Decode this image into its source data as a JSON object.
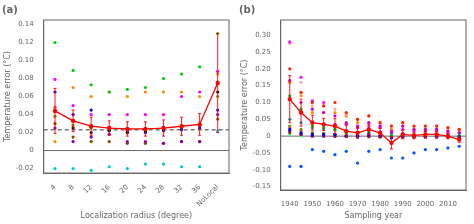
{
  "chart_data": [
    {
      "type": "scatter",
      "title": "(a)",
      "x_label": "Localization radius (degree)",
      "y_label": "Temperature error (°C)",
      "x": [
        4,
        8,
        12,
        16,
        20,
        24,
        28,
        32,
        36,
        40
      ],
      "xlim": [
        1.5,
        42.5
      ],
      "xticks": [
        4,
        8,
        12,
        16,
        20,
        24,
        28,
        32,
        36,
        {
          "value": 40,
          "label": "NoLocal"
        }
      ],
      "ylim": [
        -0.025,
        0.145
      ],
      "yticks": [
        -0.02,
        0,
        0.02,
        0.04,
        0.06,
        0.08,
        {
          "value": 0.1,
          "label": "0.10"
        },
        0.12,
        0.14
      ],
      "grid": false,
      "hlines": [
        {
          "y": 0.023,
          "color": "#000000",
          "line_style": "dashed"
        },
        {
          "y": 0,
          "color": "#444444",
          "line_style": "solid"
        }
      ],
      "series": [
        {
          "type": "scatter",
          "marker": "circle",
          "color": "#00cc00",
          "values": [
            0.12,
            0.089,
            0.073,
            0.065,
            0.068,
            0.07,
            0.08,
            0.085,
            0.093,
            0.13
          ]
        },
        {
          "type": "scatter",
          "marker": "circle",
          "color": "#ff00ff",
          "values": [
            0.079,
            0.05,
            0.04,
            0.04,
            0.04,
            0.04,
            0.04,
            0.06,
            0.065,
            0.088
          ]
        },
        {
          "type": "scatter",
          "marker": "circle",
          "color": "#ff4444",
          "values": [
            0.048,
            0.033,
            0.027,
            0.025,
            0.024,
            0.024,
            0.025,
            0.027,
            0.029,
            0.075
          ]
        },
        {
          "type": "scatter",
          "marker": "circle",
          "color": "#000000",
          "values": [
            0.044,
            0.025,
            0.02,
            0.022,
            0.02,
            0.022,
            0.025,
            0.026,
            0.028,
            0.065
          ]
        },
        {
          "type": "scatter",
          "marker": "circle",
          "color": "#8800aa",
          "values": [
            0.025,
            0.01,
            0.015,
            0.018,
            0.01,
            0.01,
            0.008,
            0.01,
            0.01,
            0.04
          ]
        },
        {
          "type": "scatter",
          "marker": "circle",
          "color": "#ff8800",
          "values": [
            0.01,
            0.07,
            0.06,
            0.065,
            0.06,
            0.065,
            0.065,
            0.065,
            0.06,
            0.085
          ]
        },
        {
          "type": "scatter",
          "marker": "circle",
          "color": "#00cccc",
          "values": [
            -0.02,
            -0.02,
            -0.022,
            -0.018,
            -0.02,
            -0.015,
            -0.015,
            -0.018,
            -0.018,
            0.022
          ]
        },
        {
          "type": "scatter",
          "marker": "circle",
          "color": "#0000ff",
          "values": [
            0.065,
            0.04,
            0.045,
            0.025,
            0.022,
            0.02,
            0.022,
            0.023,
            0.025,
            0.045
          ]
        },
        {
          "type": "scatter",
          "marker": "circle",
          "color": "#888800",
          "values": [
            0.038,
            0.028,
            0.025,
            0.022,
            0.02,
            0.022,
            0.025,
            0.025,
            0.028,
            0.06
          ]
        },
        {
          "type": "scatter",
          "marker": "circle",
          "color": "#884400",
          "values": [
            0.03,
            0.015,
            0.01,
            0.01,
            0.008,
            0.008,
            0.008,
            0.01,
            0.01,
            0.035
          ]
        },
        {
          "type": "line",
          "marker": "circle",
          "line_style": "solid",
          "color": "#ff0000",
          "values": [
            0.044,
            0.033,
            0.027,
            0.025,
            0.024,
            0.024,
            0.025,
            0.027,
            0.029,
            0.075
          ],
          "errors": [
            0.025,
            0.012,
            0.01,
            0.008,
            0.008,
            0.008,
            0.009,
            0.01,
            0.012,
            0.055
          ]
        }
      ]
    },
    {
      "type": "scatter",
      "title": "(b)",
      "x_label": "Sampling year",
      "y_label": "Temperature error (°C)",
      "x": [
        1940,
        1945,
        1950,
        1955,
        1960,
        1965,
        1970,
        1975,
        1980,
        1985,
        1990,
        1995,
        2000,
        2005,
        2010,
        2015
      ],
      "xlim": [
        1936,
        2018
      ],
      "xticks": [
        1940,
        1950,
        1960,
        1970,
        1980,
        1990,
        2000,
        2010
      ],
      "ylim": [
        -0.16,
        0.345
      ],
      "yticks": [
        -0.15,
        {
          "value": -0.1,
          "label": "-0.10"
        },
        -0.05,
        0,
        0.05,
        {
          "value": 0.1,
          "label": "0.10"
        },
        0.15,
        {
          "value": 0.2,
          "label": "0.20"
        },
        0.25,
        {
          "value": 0.3,
          "label": "0.30"
        }
      ],
      "grid": false,
      "hlines": [
        {
          "y": 0,
          "color": "#444444",
          "line_style": "solid"
        }
      ],
      "series": [
        {
          "type": "scatter",
          "marker": "circle",
          "color": "#ff2200",
          "values": [
            0.2,
            0.13,
            0.1,
            0.09,
            0.1,
            0.07,
            0.05,
            0.06,
            0.04,
            0.03,
            0.04,
            0.03,
            0.03,
            0.03,
            0.025,
            0.02
          ]
        },
        {
          "type": "scatter",
          "marker": "circle",
          "color": "#cc00cc",
          "values": [
            0.165,
            0.1,
            0.08,
            0.07,
            0.06,
            0.04,
            0.03,
            0.04,
            0.03,
            0.01,
            0.03,
            0.02,
            0.02,
            0.02,
            0.015,
            0.01
          ]
        },
        {
          "type": "scatter",
          "marker": "circle",
          "color": "#000000",
          "values": [
            0.11,
            0.07,
            0.04,
            0.035,
            0.03,
            0.015,
            0.01,
            0.02,
            0.01,
            -0.02,
            0.005,
            0.002,
            0.005,
            0.005,
            0.0,
            -0.01
          ]
        },
        {
          "type": "scatter",
          "marker": "circle",
          "color": "#0000ff",
          "values": [
            0.02,
            0.01,
            0.005,
            0.005,
            0.005,
            0.0,
            0.0,
            0.005,
            0.0,
            -0.005,
            0.0,
            0.0,
            0.0,
            0.0,
            -0.002,
            -0.002
          ]
        },
        {
          "type": "scatter",
          "marker": "circle",
          "color": "#0055ff",
          "values": [
            -0.09,
            -0.09,
            -0.04,
            -0.045,
            -0.055,
            -0.045,
            -0.08,
            -0.045,
            -0.04,
            -0.065,
            -0.065,
            -0.05,
            -0.04,
            -0.04,
            -0.035,
            -0.03
          ]
        },
        {
          "type": "scatter",
          "marker": "circle",
          "color": "#ff00ff",
          "values": [
            0.28,
            0.175,
            0.105,
            0.1,
            0.035,
            0.035,
            0.025,
            0.03,
            0.025,
            0.015,
            0.02,
            0.015,
            0.015,
            0.015,
            0.01,
            0.01
          ]
        },
        {
          "type": "scatter",
          "marker": "circle",
          "color": "#ffaaaa",
          "values": [
            0.275,
            0.16,
            0.09,
            0.09,
            0.08,
            0.065,
            0.05,
            0.06,
            0.04,
            0.03,
            0.04,
            0.03,
            0.03,
            0.03,
            0.025,
            0.02
          ]
        },
        {
          "type": "scatter",
          "marker": "circle",
          "color": "#ff8800",
          "values": [
            0.16,
            0.12,
            0.07,
            0.07,
            0.07,
            0.06,
            0.04,
            0.04,
            0.03,
            0.02,
            0.03,
            0.02,
            0.02,
            0.02,
            0.015,
            0.01
          ]
        },
        {
          "type": "scatter",
          "marker": "circle",
          "color": "#00bb00",
          "values": [
            0.12,
            0.08,
            0.03,
            0.025,
            0.02,
            0.01,
            0.005,
            0.01,
            0.005,
            0.0,
            0.005,
            0.002,
            0.003,
            0.003,
            0.002,
            0.001
          ]
        },
        {
          "type": "scatter",
          "marker": "circle",
          "color": "#880088",
          "values": [
            0.015,
            0.005,
            0.0,
            0.0,
            0.0,
            0.0,
            0.0,
            0.0,
            0.0,
            -0.005,
            0.0,
            -0.002,
            -0.002,
            -0.002,
            -0.002,
            -0.002
          ]
        },
        {
          "type": "scatter",
          "marker": "circle",
          "color": "#00aaaa",
          "values": [
            0.05,
            0.04,
            0.025,
            0.022,
            0.018,
            0.015,
            0.01,
            0.012,
            0.008,
            0.005,
            0.008,
            0.005,
            0.004,
            0.004,
            0.003,
            0.002
          ]
        },
        {
          "type": "scatter",
          "marker": "circle",
          "color": "#888800",
          "values": [
            0.03,
            0.02,
            0.01,
            0.008,
            0.005,
            0.003,
            0.002,
            0.002,
            0.001,
            0.0,
            0.001,
            0.0,
            0.0,
            0.0,
            0.0,
            0.0
          ]
        },
        {
          "type": "scatter",
          "marker": "circle",
          "color": "#884400",
          "values": [
            0.01,
            0.005,
            0.002,
            0.002,
            0.0,
            0.0,
            -0.002,
            -0.002,
            -0.003,
            -0.005,
            -0.003,
            -0.003,
            -0.003,
            -0.003,
            -0.002,
            -0.002
          ]
        },
        {
          "type": "scatter",
          "marker": "circle",
          "color": "#ff4488",
          "values": [
            0.025,
            0.015,
            0.01,
            0.008,
            0.005,
            0.003,
            0.002,
            0.002,
            0.001,
            0.0,
            0.001,
            0.0,
            0.0,
            0.0,
            0.0,
            0.0
          ]
        },
        {
          "type": "scatter",
          "marker": "circle",
          "color": "#44ff88",
          "values": [
            0.005,
            0.0,
            0.0,
            0.0,
            0.0,
            0.0,
            0.0,
            0.0,
            0.0,
            -0.002,
            0.0,
            -0.001,
            -0.001,
            -0.001,
            -0.001,
            -0.001
          ]
        },
        {
          "type": "line",
          "marker": "circle",
          "line_style": "solid",
          "color": "#ff0000",
          "values": [
            0.11,
            0.07,
            0.04,
            0.035,
            0.03,
            0.015,
            0.01,
            0.02,
            0.01,
            -0.02,
            0.005,
            0.002,
            0.005,
            0.005,
            0.0,
            -0.01
          ],
          "errors": [
            0.07,
            0.04,
            0.022,
            0.018,
            0.022,
            0.018,
            0.016,
            0.016,
            0.013,
            0.018,
            0.013,
            0.01,
            0.01,
            0.01,
            0.008,
            0.008
          ]
        }
      ]
    }
  ]
}
